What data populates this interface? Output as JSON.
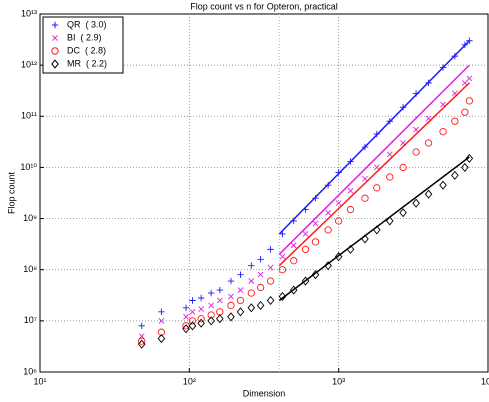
{
  "chart_data": {
    "type": "scatter",
    "title": "Flop count vs n for Opteron, practical",
    "x_label": "Dimension",
    "y_label": "Flop count",
    "log_x": true,
    "log_y": true,
    "grid": true,
    "legend": "upper left",
    "xlim": [
      10,
      10000
    ],
    "xticks": [
      {
        "value": 10,
        "label": "10¹"
      },
      {
        "value": 100,
        "label": "10²"
      },
      {
        "value": 1000,
        "label": "10³"
      },
      {
        "value": 10000,
        "label": "10⁴"
      }
    ],
    "ylim": [
      1000000,
      10000000000000
    ],
    "yticks": [
      {
        "value": 1000000,
        "label": "10⁶"
      },
      {
        "value": 10000000,
        "label": "10⁷"
      },
      {
        "value": 100000000,
        "label": "10⁸"
      },
      {
        "value": 1000000000,
        "label": "10⁹"
      },
      {
        "value": 10000000000,
        "label": "10¹⁰"
      },
      {
        "value": 100000000000,
        "label": "10¹¹"
      },
      {
        "value": 1000000000000,
        "label": "10¹²"
      },
      {
        "value": 10000000000000,
        "label": "10¹³"
      }
    ],
    "ref_x": 400,
    "ref_color": "#5fd3d3",
    "x": [
      48,
      65,
      95,
      105,
      120,
      140,
      160,
      190,
      220,
      260,
      300,
      350,
      420,
      500,
      600,
      700,
      850,
      1000,
      1200,
      1500,
      1800,
      2200,
      2700,
      3300,
      4000,
      5000,
      6000,
      7000,
      7500
    ],
    "series": [
      {
        "name": "QR  ( 3.0)",
        "color": "#1a1aff",
        "marker": "plus",
        "values": [
          8000000,
          15000000,
          18000000,
          25000000,
          28000000,
          35000000,
          40000000,
          60000000,
          80000000,
          120000000,
          160000000,
          250000000,
          500000000,
          900000000,
          1500000000,
          2500000000,
          4500000000,
          8000000000,
          13000000000,
          25000000000,
          45000000000,
          80000000000,
          150000000000,
          280000000000,
          450000000000,
          900000000000,
          1500000000000,
          2500000000000,
          3000000000000
        ],
        "fit_x": [
          400,
          7500
        ],
        "fit_y": [
          500000000,
          3000000000000
        ]
      },
      {
        "name": "BI  ( 2.9)",
        "color": "#e020e0",
        "marker": "x",
        "values": [
          5000000,
          10000000,
          12000000,
          15000000,
          17000000,
          20000000,
          25000000,
          30000000,
          40000000,
          60000000,
          80000000,
          110000000,
          180000000,
          300000000,
          500000000,
          800000000,
          1300000000,
          2000000000,
          3500000000,
          6000000000,
          10000000000,
          18000000000,
          30000000000,
          55000000000,
          90000000000,
          170000000000,
          280000000000,
          450000000000,
          550000000000
        ],
        "fit_x": [
          400,
          7500
        ],
        "fit_y": [
          200000000,
          1000000000000
        ]
      },
      {
        "name": "DC  ( 2.8)",
        "color": "#ff1a1a",
        "marker": "circle",
        "values": [
          4000000,
          6000000,
          8000000,
          10000000,
          11000000,
          13000000,
          15000000,
          20000000,
          25000000,
          35000000,
          45000000,
          60000000,
          100000000,
          150000000,
          250000000,
          350000000,
          600000000,
          900000000,
          1500000000,
          2500000000,
          4000000000,
          6500000000,
          10000000000,
          20000000000,
          30000000000,
          50000000000,
          80000000000,
          120000000000,
          200000000000
        ],
        "fit_x": [
          400,
          7500
        ],
        "fit_y": [
          120000000,
          450000000000
        ]
      },
      {
        "name": "MR  ( 2.2)",
        "color": "#000000",
        "marker": "diamond",
        "values": [
          3500000,
          4500000,
          7000000,
          8000000,
          9000000,
          10000000,
          11000000,
          12000000,
          15000000,
          18000000,
          20000000,
          25000000,
          30000000,
          40000000,
          60000000,
          80000000,
          120000000,
          180000000,
          250000000,
          400000000,
          600000000,
          900000000,
          1300000000,
          2000000000,
          3000000000,
          4500000000,
          7000000000,
          10000000000,
          15000000000
        ],
        "fit_x": [
          400,
          7500
        ],
        "fit_y": [
          25000000,
          16000000000
        ]
      }
    ]
  }
}
